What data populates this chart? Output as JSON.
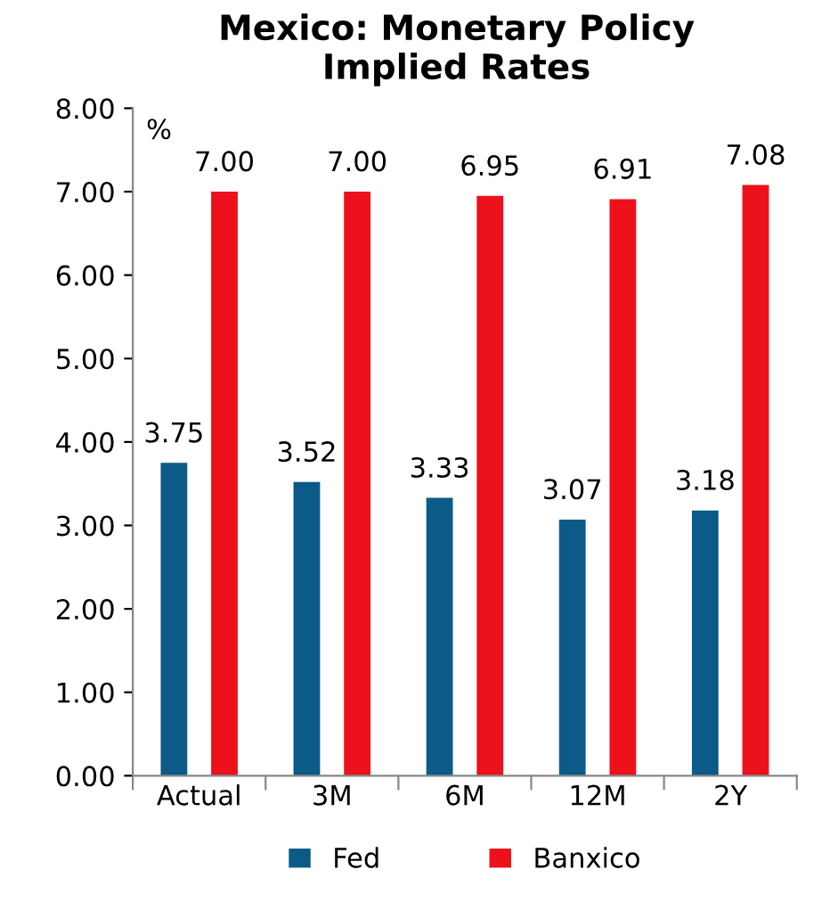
{
  "chart_data": {
    "type": "bar",
    "title": "Mexico: Monetary Policy\nImplied Rates",
    "ylabel": "%",
    "categories": [
      "Actual",
      "3M",
      "6M",
      "12M",
      "2Y"
    ],
    "series": [
      {
        "name": "Fed",
        "color": "#0c5a87",
        "values": [
          3.75,
          3.52,
          3.33,
          3.07,
          3.18
        ],
        "value_labels": [
          "3.75",
          "3.52",
          "3.33",
          "3.07",
          "3.18"
        ]
      },
      {
        "name": "Banxico",
        "color": "#ec111a",
        "values": [
          7.0,
          7.0,
          6.95,
          6.91,
          7.08
        ],
        "value_labels": [
          "7.00",
          "7.00",
          "6.95",
          "6.91",
          "7.08"
        ]
      }
    ],
    "ylim": [
      0,
      8
    ],
    "yticks": [
      {
        "value": 0,
        "label": "0.00"
      },
      {
        "value": 1,
        "label": "1.00"
      },
      {
        "value": 2,
        "label": "2.00"
      },
      {
        "value": 3,
        "label": "3.00"
      },
      {
        "value": 4,
        "label": "4.00"
      },
      {
        "value": 5,
        "label": "5.00"
      },
      {
        "value": 6,
        "label": "6.00"
      },
      {
        "value": 7,
        "label": "7.00"
      },
      {
        "value": 8,
        "label": "8.00"
      }
    ],
    "grid": false,
    "legend": "bottom"
  }
}
